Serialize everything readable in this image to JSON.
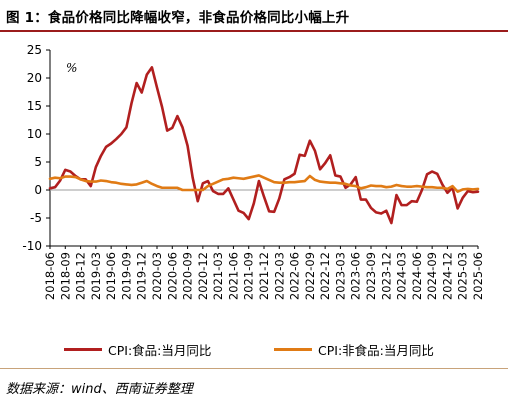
{
  "figure": {
    "title": "图 1：食品价格同比降幅收窄，非食品价格同比小幅上升",
    "source": "数据来源：wind、西南证券整理"
  },
  "colors": {
    "food": "#b11f1f",
    "nonfood": "#e07b15",
    "title_rule": "#9b1c1c",
    "source_rule": "#c8a37a",
    "zero_line": "#9e9e9e"
  },
  "chart_data": {
    "type": "line",
    "title": "",
    "xlabel": "",
    "ylabel": "%",
    "ylim": [
      -10,
      25
    ],
    "yticks": [
      -10,
      -5,
      0,
      5,
      10,
      15,
      20,
      25
    ],
    "grid": false,
    "legend_position": "bottom",
    "x": [
      "2018-06",
      "2018-07",
      "2018-08",
      "2018-09",
      "2018-10",
      "2018-11",
      "2018-12",
      "2019-01",
      "2019-02",
      "2019-03",
      "2019-04",
      "2019-05",
      "2019-06",
      "2019-07",
      "2019-08",
      "2019-09",
      "2019-10",
      "2019-11",
      "2019-12",
      "2020-01",
      "2020-02",
      "2020-03",
      "2020-04",
      "2020-05",
      "2020-06",
      "2020-07",
      "2020-08",
      "2020-09",
      "2020-10",
      "2020-11",
      "2020-12",
      "2021-01",
      "2021-02",
      "2021-03",
      "2021-04",
      "2021-05",
      "2021-06",
      "2021-07",
      "2021-08",
      "2021-09",
      "2021-10",
      "2021-11",
      "2021-12",
      "2022-01",
      "2022-02",
      "2022-03",
      "2022-04",
      "2022-05",
      "2022-06",
      "2022-07",
      "2022-08",
      "2022-09",
      "2022-10",
      "2022-11",
      "2022-12",
      "2023-01",
      "2023-02",
      "2023-03",
      "2023-04",
      "2023-05",
      "2023-06",
      "2023-07",
      "2023-08",
      "2023-09",
      "2023-10",
      "2023-11",
      "2023-12",
      "2024-01",
      "2024-02",
      "2024-03",
      "2024-04",
      "2024-05",
      "2024-06",
      "2024-07",
      "2024-08",
      "2024-09",
      "2024-10",
      "2024-11",
      "2024-12",
      "2025-01",
      "2025-02",
      "2025-03",
      "2025-04",
      "2025-05",
      "2025-06"
    ],
    "xticks": [
      "2018-06",
      "2018-09",
      "2018-12",
      "2019-03",
      "2019-06",
      "2019-09",
      "2019-12",
      "2020-03",
      "2020-06",
      "2020-09",
      "2020-12",
      "2021-03",
      "2021-06",
      "2021-09",
      "2021-12",
      "2022-03",
      "2022-06",
      "2022-09",
      "2022-12",
      "2023-03",
      "2023-06",
      "2023-09",
      "2023-12",
      "2024-03",
      "2024-06",
      "2024-09",
      "2024-12",
      "2025-03",
      "2025-06"
    ],
    "series": [
      {
        "name": "CPI:食品:当月同比",
        "color": "#b11f1f",
        "values": [
          0.3,
          0.5,
          1.7,
          3.6,
          3.3,
          2.5,
          1.9,
          1.9,
          0.7,
          4.1,
          6.1,
          7.7,
          8.3,
          9.1,
          10.0,
          11.2,
          15.5,
          19.1,
          17.4,
          20.6,
          21.9,
          18.3,
          14.8,
          10.6,
          11.1,
          13.2,
          11.2,
          7.9,
          2.2,
          -2.0,
          1.2,
          1.6,
          -0.2,
          -0.7,
          -0.7,
          0.3,
          -1.7,
          -3.7,
          -4.1,
          -5.2,
          -2.4,
          1.6,
          -1.2,
          -3.8,
          -3.9,
          -1.5,
          1.9,
          2.3,
          2.9,
          6.3,
          6.1,
          8.8,
          7.0,
          3.7,
          4.8,
          6.2,
          2.6,
          2.4,
          0.4,
          1.0,
          2.3,
          -1.7,
          -1.7,
          -3.2,
          -4.0,
          -4.2,
          -3.7,
          -5.9,
          -0.9,
          -2.7,
          -2.7,
          -2.0,
          -2.1,
          0.0,
          2.8,
          3.3,
          2.9,
          1.0,
          -0.5,
          0.4,
          -3.3,
          -1.4,
          -0.2,
          -0.4,
          -0.3
        ]
      },
      {
        "name": "CPI:非食品:当月同比",
        "color": "#e07b15",
        "values": [
          2.0,
          2.2,
          2.1,
          2.4,
          2.4,
          2.3,
          1.9,
          1.6,
          1.5,
          1.5,
          1.7,
          1.6,
          1.4,
          1.3,
          1.1,
          1.0,
          0.9,
          1.0,
          1.3,
          1.6,
          1.1,
          0.7,
          0.4,
          0.4,
          0.4,
          0.4,
          0.0,
          0.0,
          0.0,
          0.0,
          0.0,
          0.7,
          1.1,
          1.5,
          1.9,
          2.0,
          2.2,
          2.1,
          2.0,
          2.2,
          2.4,
          2.6,
          2.2,
          1.8,
          1.4,
          1.3,
          1.3,
          1.4,
          1.4,
          1.5,
          1.6,
          2.5,
          1.8,
          1.5,
          1.4,
          1.3,
          1.3,
          1.2,
          1.1,
          0.8,
          0.7,
          0.3,
          0.5,
          0.8,
          0.7,
          0.7,
          0.5,
          0.6,
          0.9,
          0.7,
          0.6,
          0.6,
          0.7,
          0.6,
          0.5,
          0.5,
          0.4,
          0.4,
          0.2,
          0.7,
          -0.3,
          0.1,
          0.2,
          0.1,
          0.2
        ]
      }
    ]
  }
}
